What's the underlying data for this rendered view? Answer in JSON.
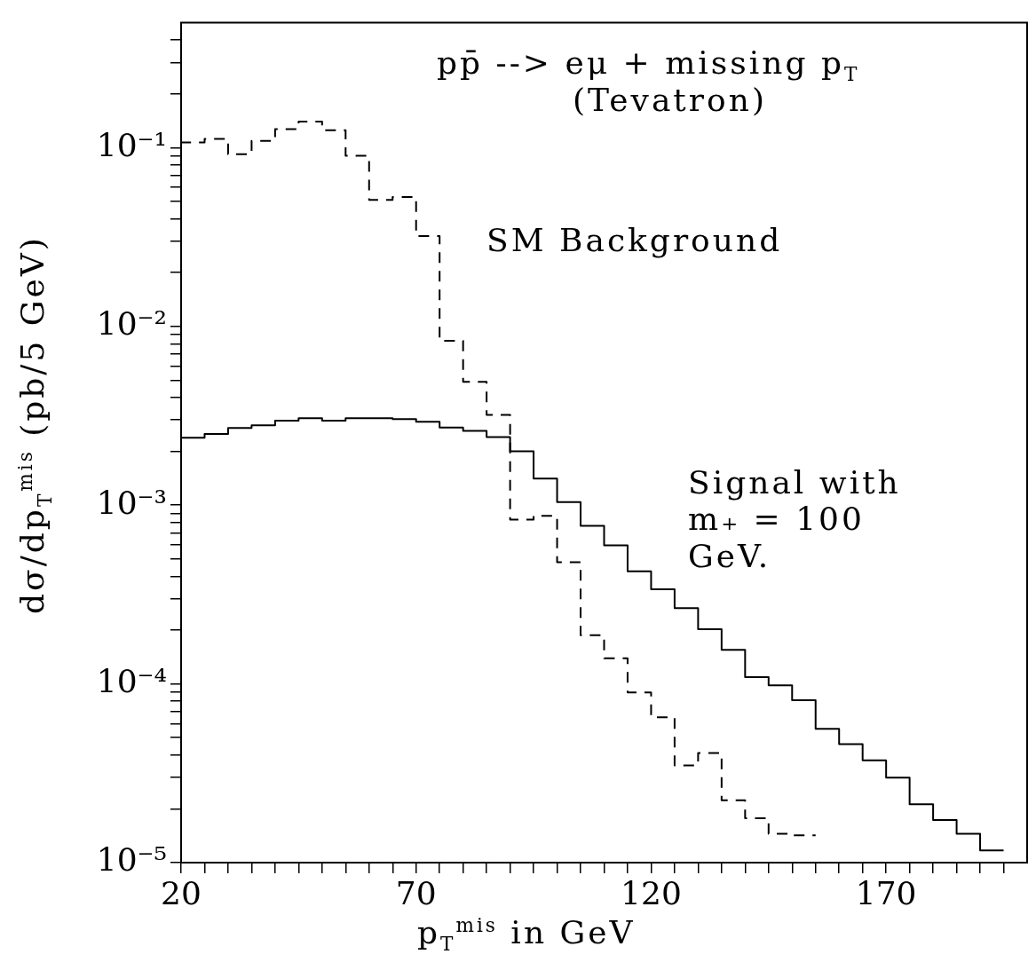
{
  "chart_data": {
    "type": "step",
    "xlabel": "p$_{T}$$^{mis}$ in GeV",
    "ylabel": "dσ/dp$_{T}$$^{mis}$ (pb/5 GeV)",
    "annotations": [
      "pp̄ --> eμ + missing p$_{T}$",
      "(Tevatron)"
    ],
    "x": [
      20,
      25,
      30,
      35,
      40,
      45,
      50,
      55,
      60,
      65,
      70,
      75,
      80,
      85,
      90,
      95,
      100,
      105,
      110,
      115,
      120,
      125,
      130,
      135,
      140,
      145,
      150,
      155,
      160,
      165,
      170,
      175,
      180,
      185,
      190,
      195
    ],
    "series": [
      {
        "name": "SM Background",
        "color": "#000000",
        "line_style": "dashed",
        "values": [
          0.106,
          0.107,
          0.112,
          0.092,
          0.109,
          0.127,
          0.14,
          0.125,
          0.09,
          0.051,
          0.053,
          0.032,
          0.0083,
          0.0049,
          0.0032,
          0.00083,
          0.00087,
          0.00048,
          0.000187,
          0.000139,
          8.95e-05,
          6.5e-05,
          3.5e-05,
          4.1e-05,
          2.23e-05,
          1.77e-05,
          1.45e-05,
          1.42e-05,
          null,
          null,
          null,
          null,
          null,
          null,
          null,
          null
        ]
      },
      {
        "name": "Signal with m₊ = 100 GeV.",
        "color": "#000000",
        "line_style": "solid",
        "values": [
          0.0021,
          0.00238,
          0.0025,
          0.0027,
          0.0028,
          0.00297,
          0.00306,
          0.00297,
          0.00306,
          0.00306,
          0.00303,
          0.00293,
          0.00272,
          0.0026,
          0.0024,
          0.002,
          0.00141,
          0.00104,
          0.000766,
          0.000596,
          0.000426,
          0.000338,
          0.000265,
          0.000202,
          0.000155,
          0.000109,
          9.8e-05,
          8.1e-05,
          5.6e-05,
          4.6e-05,
          3.73e-05,
          2.99e-05,
          2.12e-05,
          1.73e-05,
          1.45e-05,
          1.17e-05
        ]
      }
    ],
    "log": true,
    "marker": "none",
    "xlim": [
      20,
      200
    ],
    "xticks": [
      20,
      {
        "value": 25,
        "label": null
      },
      {
        "value": 30,
        "label": null
      },
      {
        "value": 35,
        "label": null
      },
      {
        "value": 40,
        "label": null
      },
      {
        "value": 45,
        "label": null
      },
      {
        "value": 50,
        "label": null
      },
      {
        "value": 55,
        "label": null
      },
      {
        "value": 60,
        "label": null
      },
      {
        "value": 65,
        "label": null
      },
      70,
      {
        "value": 75,
        "label": null
      },
      {
        "value": 80,
        "label": null
      },
      {
        "value": 85,
        "label": null
      },
      {
        "value": 90,
        "label": null
      },
      {
        "value": 95,
        "label": null
      },
      {
        "value": 100,
        "label": null
      },
      {
        "value": 105,
        "label": null
      },
      {
        "value": 110,
        "label": null
      },
      {
        "value": 115,
        "label": null
      },
      120,
      {
        "value": 125,
        "label": null
      },
      {
        "value": 130,
        "label": null
      },
      {
        "value": 135,
        "label": null
      },
      {
        "value": 140,
        "label": null
      },
      {
        "value": 145,
        "label": null
      },
      {
        "value": 150,
        "label": null
      },
      {
        "value": 155,
        "label": null
      },
      {
        "value": 160,
        "label": null
      },
      {
        "value": 165,
        "label": null
      },
      170,
      {
        "value": 175,
        "label": null
      },
      {
        "value": 180,
        "label": null
      },
      {
        "value": 185,
        "label": null
      },
      {
        "value": 190,
        "label": null
      },
      {
        "value": 195,
        "label": null
      }
    ],
    "ylim": [
      1e-05,
      0.5
    ],
    "yticks": [
      {
        "value": 1e-05,
        "label": "10⁻⁵"
      },
      {
        "value": 2e-05,
        "label": null
      },
      {
        "value": 3e-05,
        "label": null
      },
      {
        "value": 4e-05,
        "label": null
      },
      {
        "value": 5e-05,
        "label": null
      },
      {
        "value": 6e-05,
        "label": null
      },
      {
        "value": 7e-05,
        "label": null
      },
      {
        "value": 8e-05,
        "label": null
      },
      {
        "value": 9e-05,
        "label": null
      },
      {
        "value": 0.0001,
        "label": "10⁻⁴"
      },
      {
        "value": 0.0002,
        "label": null
      },
      {
        "value": 0.0003,
        "label": null
      },
      {
        "value": 0.0004,
        "label": null
      },
      {
        "value": 0.0005,
        "label": null
      },
      {
        "value": 0.0006,
        "label": null
      },
      {
        "value": 0.0007,
        "label": null
      },
      {
        "value": 0.0008,
        "label": null
      },
      {
        "value": 0.0009,
        "label": null
      },
      {
        "value": 0.001,
        "label": "10⁻³"
      },
      {
        "value": 0.002,
        "label": null
      },
      {
        "value": 0.003,
        "label": null
      },
      {
        "value": 0.004,
        "label": null
      },
      {
        "value": 0.005,
        "label": null
      },
      {
        "value": 0.006,
        "label": null
      },
      {
        "value": 0.007,
        "label": null
      },
      {
        "value": 0.008,
        "label": null
      },
      {
        "value": 0.009,
        "label": null
      },
      {
        "value": 0.01,
        "label": "10⁻²"
      },
      {
        "value": 0.02,
        "label": null
      },
      {
        "value": 0.03,
        "label": null
      },
      {
        "value": 0.04,
        "label": null
      },
      {
        "value": 0.05,
        "label": null
      },
      {
        "value": 0.06,
        "label": null
      },
      {
        "value": 0.07,
        "label": null
      },
      {
        "value": 0.08,
        "label": null
      },
      {
        "value": 0.09,
        "label": null
      },
      {
        "value": 0.1,
        "label": "10⁻¹"
      },
      {
        "value": 0.2,
        "label": null
      },
      {
        "value": 0.3,
        "label": null
      },
      {
        "value": 0.4,
        "label": null
      }
    ]
  }
}
